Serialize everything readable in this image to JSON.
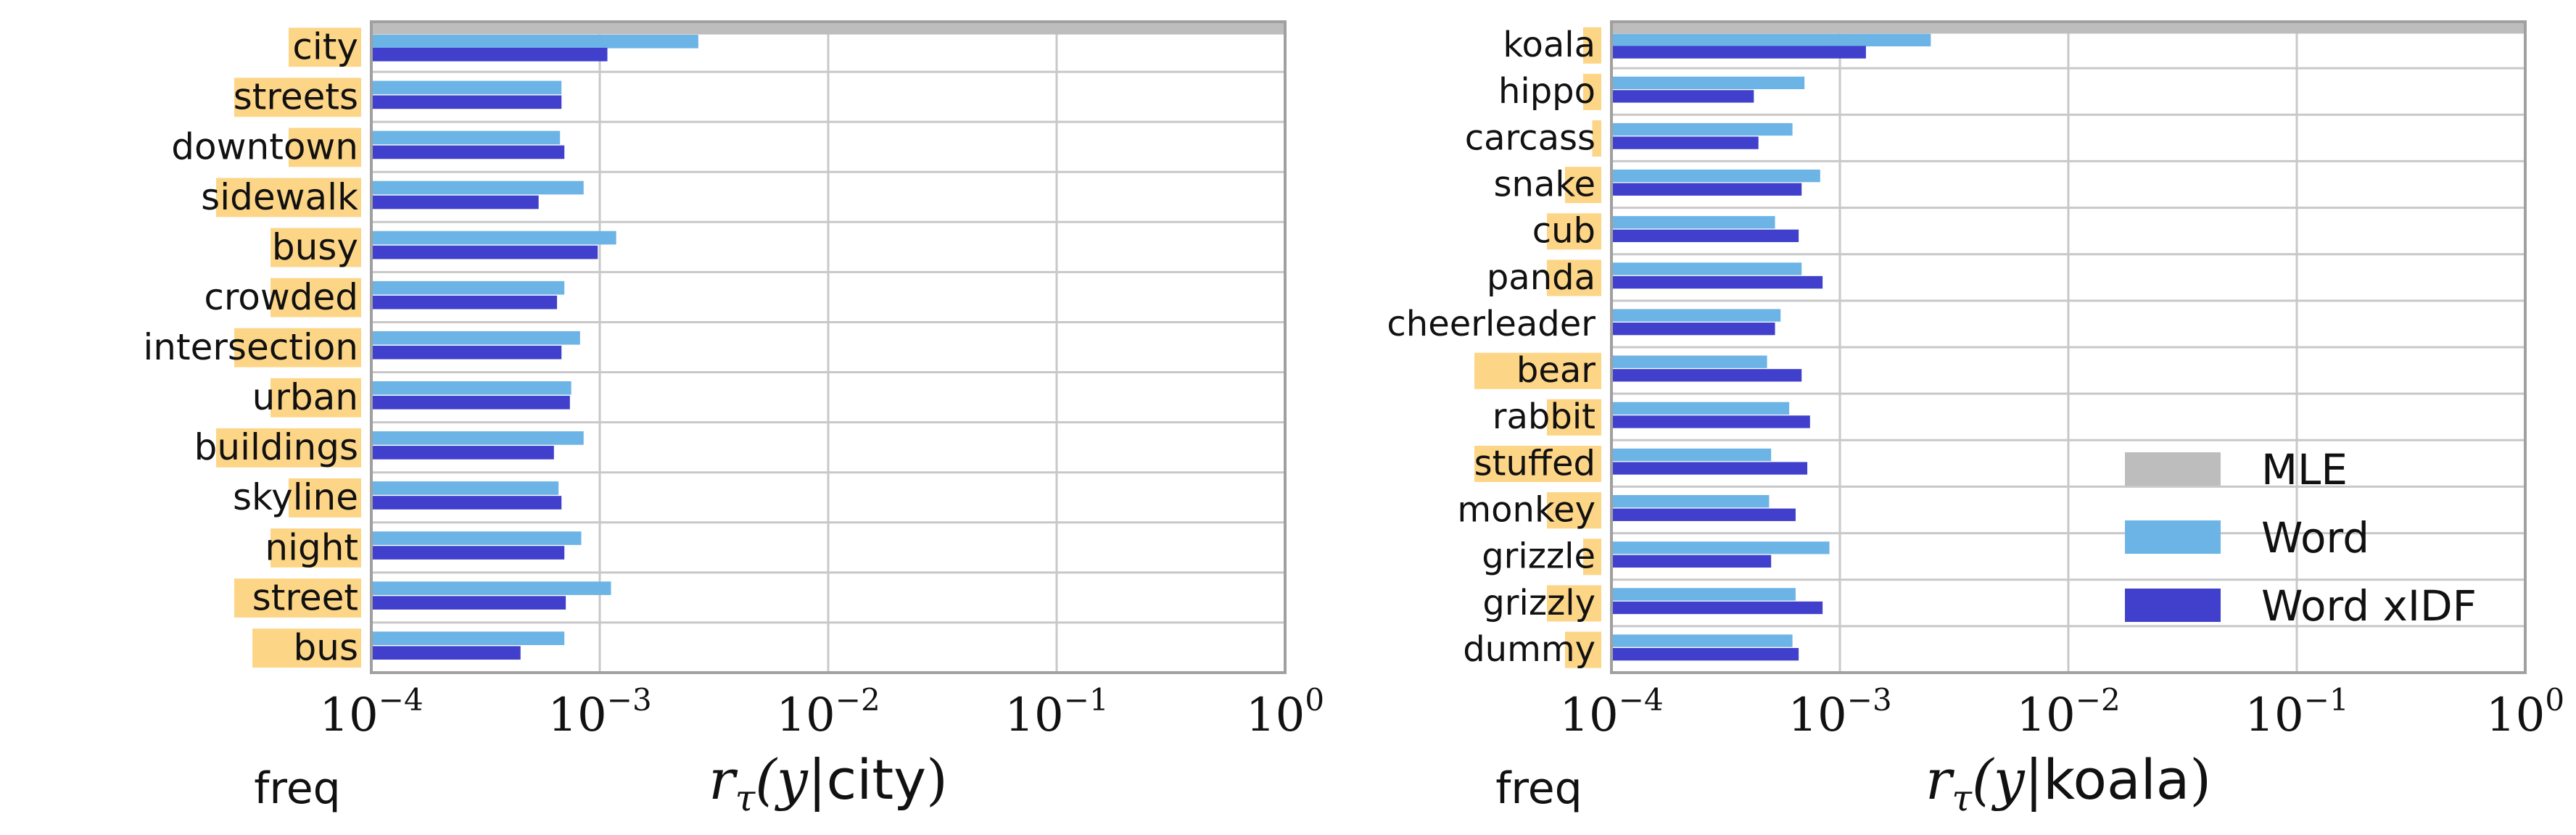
{
  "colors": {
    "freq_highlight": "#fdd586",
    "mle": "#bdbdbd",
    "word": "#6db4e6",
    "word_xidf": "#4040cc",
    "grid": "#c8c8c8",
    "spine": "#a0a0a0"
  },
  "legend": {
    "placement": "lower-right of right panel",
    "entries": [
      {
        "key": "mle",
        "label": "MLE"
      },
      {
        "key": "word",
        "label": "Word"
      },
      {
        "key": "word_xidf",
        "label": "Word xIDF"
      }
    ]
  },
  "chart_data": [
    {
      "type": "bar",
      "orientation": "horizontal",
      "x_scale": "log",
      "xlim": [
        0.0001,
        1
      ],
      "x_ticks": [
        {
          "base": "10",
          "exp": "−4"
        },
        {
          "base": "10",
          "exp": "−3"
        },
        {
          "base": "10",
          "exp": "−2"
        },
        {
          "base": "10",
          "exp": "−1"
        },
        {
          "base": "10",
          "exp": "0"
        }
      ],
      "xlabel": {
        "prefix": "r",
        "sub": "τ",
        "open": "(y|",
        "word": "city",
        "close": ")"
      },
      "freq_label": "freq",
      "grid": true,
      "categories": [
        "city",
        "streets",
        "downtown",
        "sidewalk",
        "busy",
        "crowded",
        "intersection",
        "urban",
        "buildings",
        "skyline",
        "night",
        "street",
        "bus"
      ],
      "freq_highlight_chars": [
        4,
        7,
        4,
        8,
        5,
        5,
        7,
        5,
        8,
        4,
        5,
        7,
        6
      ],
      "series": [
        {
          "name": "MLE",
          "key": "mle",
          "values": [
            1,
            null,
            null,
            null,
            null,
            null,
            null,
            null,
            null,
            null,
            null,
            null,
            null
          ]
        },
        {
          "name": "Word",
          "key": "word",
          "values": [
            0.0027,
            0.00068,
            0.00067,
            0.00085,
            0.00118,
            0.0007,
            0.00082,
            0.00075,
            0.00085,
            0.00066,
            0.00083,
            0.00112,
            0.0007
          ]
        },
        {
          "name": "Word xIDF",
          "key": "word_xidf",
          "values": [
            0.00108,
            0.00068,
            0.0007,
            0.00054,
            0.00098,
            0.00065,
            0.00068,
            0.00074,
            0.00063,
            0.00068,
            0.0007,
            0.00071,
            0.00045
          ]
        }
      ]
    },
    {
      "type": "bar",
      "orientation": "horizontal",
      "x_scale": "log",
      "xlim": [
        0.0001,
        1
      ],
      "x_ticks": [
        {
          "base": "10",
          "exp": "−4"
        },
        {
          "base": "10",
          "exp": "−3"
        },
        {
          "base": "10",
          "exp": "−2"
        },
        {
          "base": "10",
          "exp": "−1"
        },
        {
          "base": "10",
          "exp": "0"
        }
      ],
      "xlabel": {
        "prefix": "r",
        "sub": "τ",
        "open": "(y|",
        "word": "koala",
        "close": ")"
      },
      "freq_label": "freq",
      "grid": true,
      "categories": [
        "koala",
        "hippo",
        "carcass",
        "snake",
        "cub",
        "panda",
        "cheerleader",
        "bear",
        "rabbit",
        "stuffed",
        "monkey",
        "grizzle",
        "grizzly",
        "dummy"
      ],
      "freq_highlight_chars": [
        1,
        1,
        0.5,
        2,
        3,
        3,
        0,
        7,
        3,
        7,
        3,
        1,
        3,
        2
      ],
      "series": [
        {
          "name": "MLE",
          "key": "mle",
          "values": [
            1,
            null,
            null,
            null,
            null,
            null,
            null,
            null,
            null,
            null,
            null,
            null,
            null,
            null
          ]
        },
        {
          "name": "Word",
          "key": "word",
          "values": [
            0.0025,
            0.0007,
            0.00062,
            0.00082,
            0.00052,
            0.00068,
            0.00055,
            0.00048,
            0.0006,
            0.0005,
            0.00049,
            0.0009,
            0.00064,
            0.00062
          ]
        },
        {
          "name": "Word xIDF",
          "key": "word_xidf",
          "values": [
            0.0013,
            0.00042,
            0.00044,
            0.00068,
            0.00066,
            0.00084,
            0.00052,
            0.00068,
            0.00074,
            0.00072,
            0.00064,
            0.0005,
            0.00084,
            0.00066
          ]
        }
      ]
    }
  ]
}
